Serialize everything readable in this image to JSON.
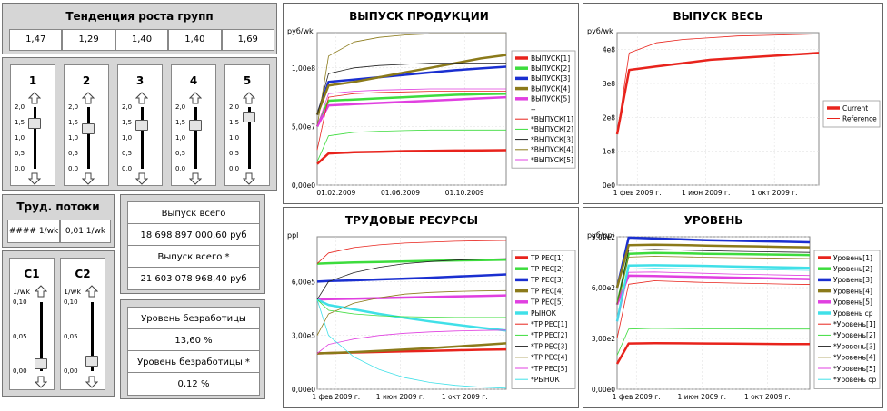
{
  "growth": {
    "title": "Тенденция роста групп",
    "values": [
      "1,47",
      "1,29",
      "1,40",
      "1,40",
      "1,69"
    ]
  },
  "sliders": [
    {
      "label": "1",
      "value": 1.47
    },
    {
      "label": "2",
      "value": 1.29
    },
    {
      "label": "3",
      "value": 1.4
    },
    {
      "label": "4",
      "value": 1.4
    },
    {
      "label": "5",
      "value": 1.69
    }
  ],
  "slider_ticks": [
    "2,0",
    "1,5",
    "1,0",
    "0,5",
    "0,0"
  ],
  "labor": {
    "title": "Труд. потоки",
    "value1": "#### 1/wk",
    "value2": "0,01 1/wk"
  },
  "c_sliders": [
    {
      "label": "C1",
      "unit": "1/wk",
      "value": 0.01
    },
    {
      "label": "C2",
      "unit": "1/wk",
      "value": 0.015
    }
  ],
  "c_ticks": [
    "0,10",
    "0,05",
    "0,00"
  ],
  "output_info": {
    "label1": "Выпуск всего",
    "value1": "18 698 897 000,60 руб",
    "label2": "Выпуск всего  *",
    "value2": "21 603 078 968,40 руб"
  },
  "unemployment": {
    "label1": "Уровень безработицы",
    "value1": "13,60 %",
    "label2": "Уровень безработицы  *",
    "value2": "0,12 %"
  },
  "colors": {
    "red": "#e8231c",
    "green": "#3ddc3d",
    "blue": "#1a2fd0",
    "olive": "#8b7a1a",
    "magenta": "#e040e0",
    "cyan": "#40e0e8",
    "black": "#222222"
  },
  "chart_data": [
    {
      "type": "line",
      "title": "ВЫПУСК ПРОДУКЦИИ",
      "ylabel": "руб/wk",
      "ylim": [
        0,
        130000000
      ],
      "yticks": [
        {
          "v": 0,
          "label": "0,00e0"
        },
        {
          "v": 50000000,
          "label": "5,00e7"
        },
        {
          "v": 100000000,
          "label": "1,00e8"
        }
      ],
      "xticks": [
        "01.02.2009",
        "01.06.2009",
        "01.10.2009"
      ],
      "legend": [
        "ВЫПУСК[1]",
        "ВЫПУСК[2]",
        "ВЫПУСК[3]",
        "ВЫПУСК[4]",
        "ВЫПУСК[5]",
        "--",
        "*ВЫПУСК[1]",
        "*ВЫПУСК[2]",
        "*ВЫПУСК[3]",
        "*ВЫПУСК[4]",
        "*ВЫПУСК[5]"
      ],
      "series": [
        {
          "name": "ВЫПУСК[1]",
          "color": "red",
          "width": 2.5,
          "y": [
            18000000,
            27000000,
            28000000,
            28500000,
            29000000,
            29200000,
            29500000,
            29600000,
            29800000
          ]
        },
        {
          "name": "ВЫПУСК[2]",
          "color": "green",
          "width": 2.5,
          "y": [
            50000000,
            72000000,
            73000000,
            74000000,
            75000000,
            76000000,
            77000000,
            77500000,
            78000000
          ]
        },
        {
          "name": "ВЫПУСК[3]",
          "color": "blue",
          "width": 2.5,
          "y": [
            60000000,
            88000000,
            90000000,
            92000000,
            94000000,
            96000000,
            98000000,
            99500000,
            101000000
          ]
        },
        {
          "name": "ВЫПУСК[4]",
          "color": "olive",
          "width": 2.5,
          "y": [
            60000000,
            85000000,
            88000000,
            92000000,
            96000000,
            100000000,
            104000000,
            108000000,
            111000000
          ]
        },
        {
          "name": "ВЫПУСК[5]",
          "color": "magenta",
          "width": 2.5,
          "y": [
            50000000,
            68000000,
            69000000,
            70000000,
            71000000,
            72000000,
            73000000,
            74000000,
            75000000
          ]
        },
        {
          "name": "*ВЫПУСК[1]",
          "color": "red",
          "width": 0.8,
          "y": [
            30000000,
            75000000,
            78000000,
            79000000,
            79500000,
            80000000,
            80000000,
            80000000,
            80000000
          ]
        },
        {
          "name": "*ВЫПУСК[2]",
          "color": "green",
          "width": 0.8,
          "y": [
            20000000,
            42000000,
            45000000,
            46000000,
            46500000,
            47000000,
            47000000,
            47000000,
            47000000
          ]
        },
        {
          "name": "*ВЫПУСК[3]",
          "color": "black",
          "width": 0.8,
          "y": [
            60000000,
            95000000,
            100000000,
            102000000,
            103000000,
            104000000,
            104000000,
            104000000,
            104000000
          ]
        },
        {
          "name": "*ВЫПУСК[4]",
          "color": "olive",
          "width": 0.8,
          "y": [
            50000000,
            110000000,
            122000000,
            126000000,
            128000000,
            129000000,
            129000000,
            129000000,
            129000000
          ]
        },
        {
          "name": "*ВЫПУСК[5]",
          "color": "magenta",
          "width": 0.8,
          "y": [
            50000000,
            78000000,
            80000000,
            81000000,
            81500000,
            82000000,
            82000000,
            82000000,
            82000000
          ]
        }
      ]
    },
    {
      "type": "line",
      "title": "ВЫПУСК ВЕСЬ",
      "ylabel": "руб/wk",
      "ylim": [
        0,
        450000000
      ],
      "yticks": [
        {
          "v": 0,
          "label": "0e0"
        },
        {
          "v": 100000000,
          "label": "1e8"
        },
        {
          "v": 200000000,
          "label": "2e8"
        },
        {
          "v": 300000000,
          "label": "3e8"
        },
        {
          "v": 400000000,
          "label": "4e8"
        }
      ],
      "xticks": [
        "1 фев 2009 г.",
        "1 июн 2009 г.",
        "1 окт 2009 г."
      ],
      "legend": [
        "Current",
        "Reference"
      ],
      "series": [
        {
          "name": "Current",
          "color": "red",
          "width": 2.5,
          "y": [
            150000000,
            340000000,
            350000000,
            360000000,
            370000000,
            375000000,
            380000000,
            385000000,
            390000000
          ]
        },
        {
          "name": "Reference",
          "color": "red",
          "width": 0.8,
          "y": [
            150000000,
            390000000,
            420000000,
            430000000,
            435000000,
            440000000,
            442000000,
            444000000,
            446000000
          ]
        }
      ]
    },
    {
      "type": "line",
      "title": "ТРУДОВЫЕ РЕСУРСЫ",
      "ylabel": "ppl",
      "ylim": [
        0,
        850000
      ],
      "yticks": [
        {
          "v": 0,
          "label": "0,00e0"
        },
        {
          "v": 300000,
          "label": "3,00e5"
        },
        {
          "v": 600000,
          "label": "6,00e5"
        }
      ],
      "xticks": [
        "1 фев 2009 г.",
        "1 июн 2009 г.",
        "1 окт 2009 г."
      ],
      "legend": [
        "ТР РЕС[1]",
        "ТР РЕС[2]",
        "ТР РЕС[3]",
        "ТР РЕС[4]",
        "ТР РЕС[5]",
        "РЫНОК",
        "*ТР РЕС[1]",
        "*ТР РЕС[2]",
        "*ТР РЕС[3]",
        "*ТР РЕС[4]",
        "*ТР РЕС[5]",
        "*РЫНОК"
      ],
      "series": [
        {
          "name": "ТР РЕС[1]",
          "color": "red",
          "width": 2.5,
          "y": [
            200000,
            202000,
            205000,
            208000,
            211000,
            214000,
            217000,
            220000,
            222000
          ]
        },
        {
          "name": "ТР РЕС[2]",
          "color": "green",
          "width": 2.5,
          "y": [
            700000,
            703000,
            707000,
            710000,
            713000,
            716000,
            718000,
            720000,
            722000
          ]
        },
        {
          "name": "ТР РЕС[3]",
          "color": "blue",
          "width": 2.5,
          "y": [
            600000,
            603000,
            607000,
            612000,
            617000,
            622000,
            628000,
            634000,
            640000
          ]
        },
        {
          "name": "ТР РЕС[4]",
          "color": "olive",
          "width": 2.5,
          "y": [
            200000,
            202000,
            207000,
            214000,
            221000,
            229000,
            238000,
            247000,
            256000
          ]
        },
        {
          "name": "ТР РЕС[5]",
          "color": "magenta",
          "width": 2.5,
          "y": [
            500000,
            502000,
            505000,
            508000,
            511000,
            514000,
            517000,
            520000,
            523000
          ]
        },
        {
          "name": "РЫНОК",
          "color": "cyan",
          "width": 2.5,
          "y": [
            500000,
            470000,
            445000,
            420000,
            398000,
            378000,
            360000,
            343000,
            328000
          ]
        },
        {
          "name": "*ТР РЕС[1]",
          "color": "red",
          "width": 0.8,
          "y": [
            700000,
            760000,
            790000,
            805000,
            815000,
            820000,
            825000,
            828000,
            830000
          ]
        },
        {
          "name": "*ТР РЕС[2]",
          "color": "green",
          "width": 0.8,
          "y": [
            500000,
            440000,
            420000,
            410000,
            405000,
            402000,
            400000,
            400000,
            400000
          ]
        },
        {
          "name": "*ТР РЕС[3]",
          "color": "black",
          "width": 0.8,
          "y": [
            500000,
            600000,
            650000,
            680000,
            700000,
            712000,
            720000,
            725000,
            728000
          ]
        },
        {
          "name": "*ТР РЕС[4]",
          "color": "olive",
          "width": 0.8,
          "y": [
            300000,
            420000,
            480000,
            510000,
            530000,
            540000,
            545000,
            548000,
            550000
          ]
        },
        {
          "name": "*ТР РЕС[5]",
          "color": "magenta",
          "width": 0.8,
          "y": [
            200000,
            250000,
            280000,
            300000,
            312000,
            320000,
            325000,
            328000,
            330000
          ]
        },
        {
          "name": "*РЫНОК",
          "color": "cyan",
          "width": 0.8,
          "y": [
            500000,
            300000,
            180000,
            110000,
            65000,
            38000,
            22000,
            12000,
            6000
          ]
        }
      ]
    },
    {
      "type": "line",
      "title": "УРОВЕНЬ",
      "ylabel": "руб/ppl",
      "ylim": [
        0,
        900
      ],
      "yticks": [
        {
          "v": 0,
          "label": "0,00e0"
        },
        {
          "v": 300,
          "label": "3,00e2"
        },
        {
          "v": 600,
          "label": "6,00e2"
        },
        {
          "v": 900,
          "label": "9,00e2"
        }
      ],
      "xticks": [
        "1 фев 2009 г.",
        "1 июн 2009 г.",
        "1 окт 2009 г."
      ],
      "legend": [
        "Уровень[1]",
        "Уровень[2]",
        "Уровень[3]",
        "Уровень[4]",
        "Уровень[5]",
        "Уровень ср",
        "*Уровень[1]",
        "*Уровень[2]",
        "*Уровень[3]",
        "*Уровень[4]",
        "*Уровень[5]",
        "*Уровень ср"
      ],
      "series": [
        {
          "name": "Уровень[1]",
          "color": "red",
          "width": 2.5,
          "y": [
            150,
            270,
            272,
            271,
            270,
            269,
            268,
            267,
            266
          ]
        },
        {
          "name": "Уровень[2]",
          "color": "green",
          "width": 2.5,
          "y": [
            500,
            800,
            805,
            803,
            800,
            798,
            796,
            794,
            792
          ]
        },
        {
          "name": "Уровень[3]",
          "color": "blue",
          "width": 2.5,
          "y": [
            600,
            895,
            890,
            885,
            880,
            877,
            874,
            871,
            868
          ]
        },
        {
          "name": "Уровень[4]",
          "color": "olive",
          "width": 2.5,
          "y": [
            600,
            850,
            853,
            851,
            848,
            845,
            843,
            840,
            838
          ]
        },
        {
          "name": "Уровень[5]",
          "color": "magenta",
          "width": 2.5,
          "y": [
            500,
            670,
            668,
            665,
            662,
            659,
            656,
            653,
            650
          ]
        },
        {
          "name": "Уровень ср",
          "color": "cyan",
          "width": 2.5,
          "y": [
            400,
            730,
            732,
            730,
            728,
            725,
            722,
            719,
            716
          ]
        },
        {
          "name": "*Уровень[1]",
          "color": "red",
          "width": 0.8,
          "y": [
            300,
            620,
            640,
            635,
            630,
            627,
            624,
            621,
            618
          ]
        },
        {
          "name": "*Уровень[2]",
          "color": "green",
          "width": 0.8,
          "y": [
            200,
            355,
            360,
            358,
            357,
            356,
            355,
            355,
            355
          ]
        },
        {
          "name": "*Уровень[3]",
          "color": "black",
          "width": 0.8,
          "y": [
            500,
            820,
            826,
            822,
            818,
            815,
            812,
            810,
            808
          ]
        },
        {
          "name": "*Уровень[4]",
          "color": "olive",
          "width": 0.8,
          "y": [
            500,
            780,
            785,
            782,
            779,
            777,
            775,
            773,
            771
          ]
        },
        {
          "name": "*Уровень[5]",
          "color": "magenta",
          "width": 0.8,
          "y": [
            400,
            690,
            692,
            688,
            684,
            680,
            677,
            674,
            671
          ]
        },
        {
          "name": "*Уровень ср",
          "color": "cyan",
          "width": 0.8,
          "y": [
            400,
            710,
            714,
            712,
            710,
            708,
            706,
            704,
            702
          ]
        }
      ]
    }
  ]
}
